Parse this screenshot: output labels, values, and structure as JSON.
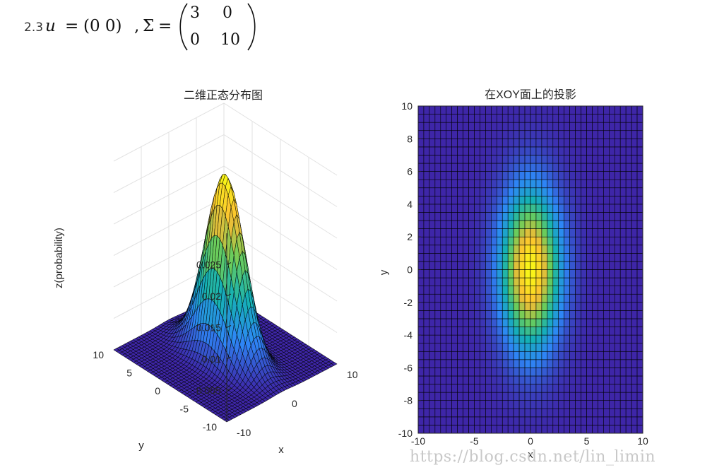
{
  "heading": {
    "number": "2.3",
    "mean_symbol": "u",
    "equals": "=",
    "mean_vector": "(0 0)",
    "separator": ",",
    "sigma_symbol": "Σ",
    "sigma_equals": "=",
    "covariance": [
      [
        "3",
        "0"
      ],
      [
        "0",
        "10"
      ]
    ]
  },
  "watermark": "https://blog.csdn.net/lin_limin",
  "chart_data": [
    {
      "type": "surface3d",
      "title": "二维正态分布图",
      "xlabel": "x",
      "ylabel": "y",
      "zlabel": "z(probability)",
      "xlim": [
        -10,
        10
      ],
      "ylim": [
        -10,
        10
      ],
      "zlim": [
        0,
        0.03
      ],
      "x_ticks": [
        "-10",
        "0",
        "10"
      ],
      "y_ticks": [
        "-10",
        "-5",
        "0",
        "5",
        "10"
      ],
      "z_ticks": [
        "0.005",
        "0.01",
        "0.015",
        "0.02",
        "0.025"
      ],
      "mean": [
        0,
        0
      ],
      "covariance": [
        [
          3,
          0
        ],
        [
          0,
          10
        ]
      ],
      "grid_step": 0.5,
      "colormap": [
        "#3e26a8",
        "#2e87f7",
        "#15b1b4",
        "#6ccd5a",
        "#fbbd33",
        "#f9fb15"
      ],
      "grid": true
    },
    {
      "type": "heatmap",
      "title": "在XOY面上的投影",
      "xlabel": "x",
      "ylabel": "y",
      "xlim": [
        -10,
        10
      ],
      "ylim": [
        -10,
        10
      ],
      "x_ticks": [
        "-10",
        "-5",
        "0",
        "5",
        "10"
      ],
      "y_ticks": [
        "10",
        "8",
        "6",
        "4",
        "2",
        "0",
        "-2",
        "-4",
        "-6",
        "-8",
        "-10"
      ],
      "mean": [
        0,
        0
      ],
      "covariance": [
        [
          3,
          0
        ],
        [
          0,
          10
        ]
      ],
      "grid_step": 0.5,
      "colormap": [
        "#3e26a8",
        "#2e87f7",
        "#15b1b4",
        "#6ccd5a",
        "#fbbd33",
        "#f9fb15"
      ],
      "grid": true
    }
  ]
}
